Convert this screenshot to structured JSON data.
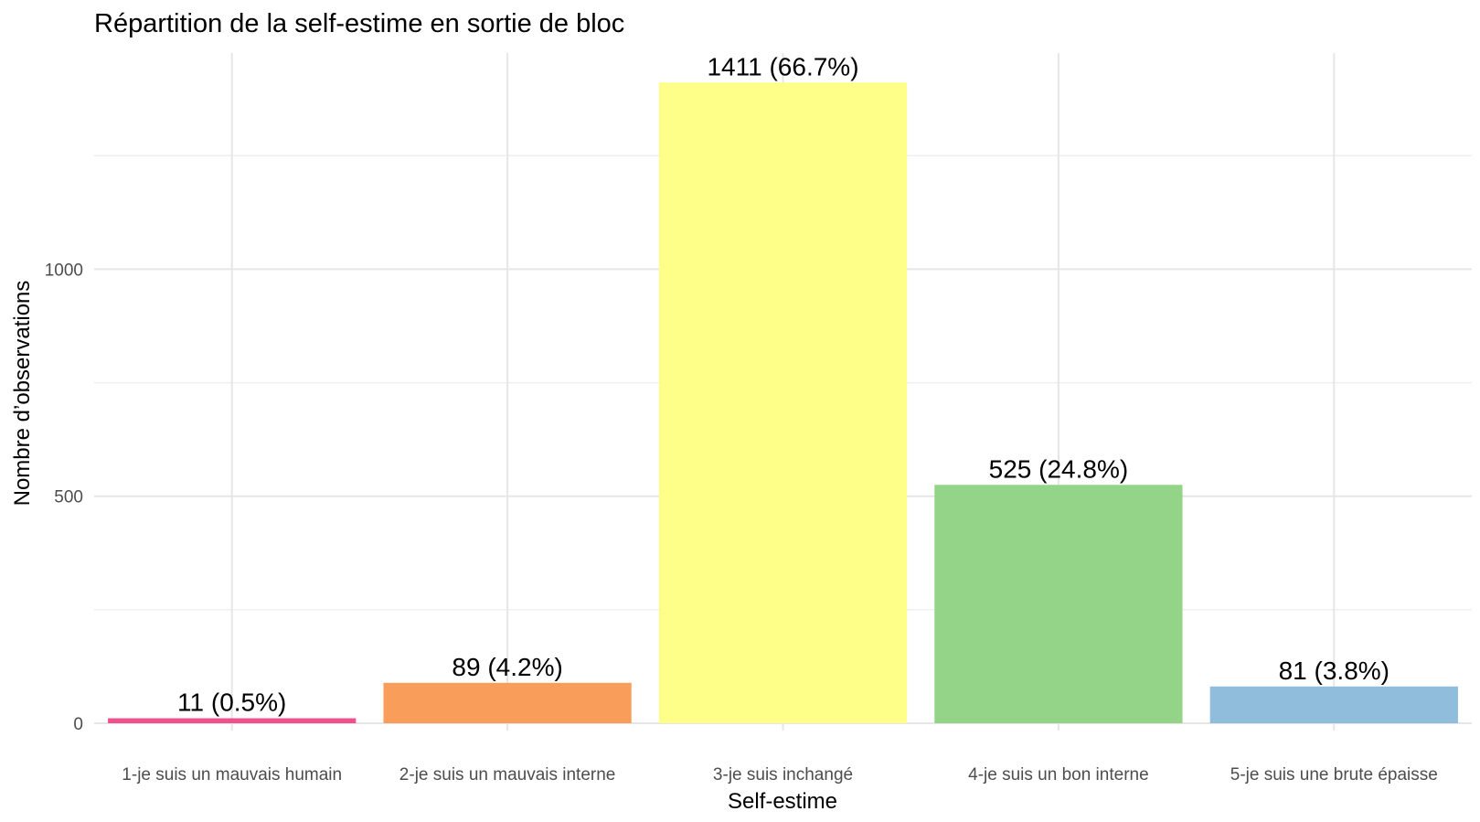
{
  "chart_data": {
    "type": "bar",
    "title": "Répartition de la self-estime en sortie de bloc",
    "xlabel": "Self-estime",
    "ylabel": "Nombre d’observations",
    "categories": [
      "1-je suis un mauvais humain",
      "2-je suis un mauvais interne",
      "3-je suis inchangé",
      "4-je suis un bon interne",
      "5-je suis une brute épaisse"
    ],
    "values": [
      11,
      89,
      1411,
      525,
      81
    ],
    "data_labels": [
      "11 (0.5%)",
      "89 (4.2%)",
      "1411 (66.7%)",
      "525 (24.8%)",
      "81 (3.8%)"
    ],
    "colors": [
      "#F0508C",
      "#F99E5A",
      "#FEFF88",
      "#93D489",
      "#8FBDDB"
    ],
    "ylim": [
      0,
      1500
    ],
    "yticks": [
      0,
      500,
      1000
    ],
    "ytick_labels": [
      "0",
      "500",
      "1000"
    ],
    "grid": true,
    "legend": "none"
  }
}
